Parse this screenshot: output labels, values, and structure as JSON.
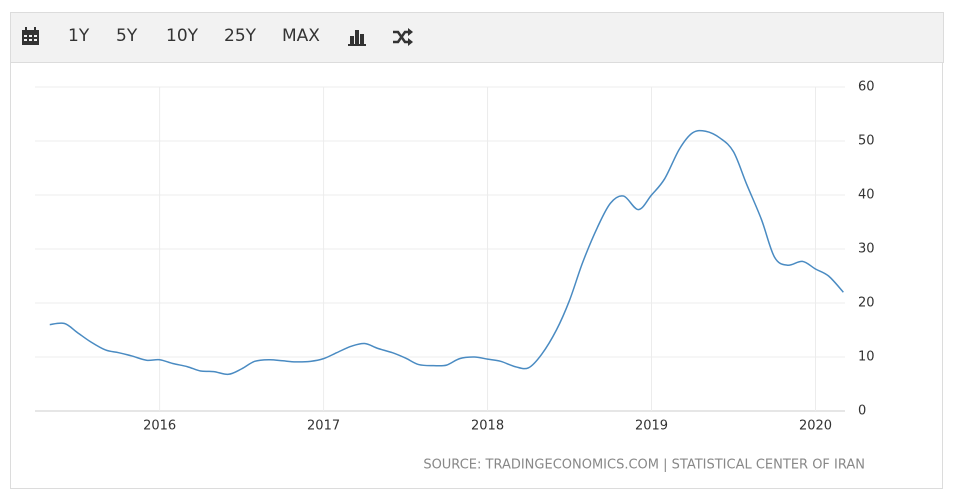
{
  "toolbar": {
    "buttons": [
      "1Y",
      "5Y",
      "10Y",
      "25Y",
      "MAX"
    ]
  },
  "chart_data": {
    "type": "line",
    "source": "SOURCE: TRADINGECONOMICS.COM | STATISTICAL CENTER OF IRAN",
    "x": [
      2015.33,
      2015.42,
      2015.5,
      2015.58,
      2015.67,
      2015.75,
      2015.83,
      2015.92,
      2016.0,
      2016.08,
      2016.17,
      2016.25,
      2016.33,
      2016.42,
      2016.5,
      2016.58,
      2016.67,
      2016.75,
      2016.83,
      2016.92,
      2017.0,
      2017.08,
      2017.17,
      2017.25,
      2017.33,
      2017.42,
      2017.5,
      2017.58,
      2017.67,
      2017.75,
      2017.83,
      2017.92,
      2018.0,
      2018.08,
      2018.17,
      2018.25,
      2018.33,
      2018.42,
      2018.5,
      2018.58,
      2018.67,
      2018.75,
      2018.83,
      2018.92,
      2019.0,
      2019.08,
      2019.17,
      2019.25,
      2019.33,
      2019.42,
      2019.5,
      2019.58,
      2019.67,
      2019.75,
      2019.83,
      2019.92,
      2020.0,
      2020.08,
      2020.17
    ],
    "series": [
      {
        "color": "#4a8bc2",
        "values": [
          16,
          16.2,
          14.5,
          12.8,
          11.3,
          10.8,
          10.2,
          9.4,
          9.5,
          8.8,
          8.2,
          7.4,
          7.3,
          6.8,
          7.8,
          9.2,
          9.5,
          9.3,
          9.1,
          9.2,
          9.7,
          10.8,
          12.0,
          12.5,
          11.6,
          10.8,
          9.8,
          8.6,
          8.4,
          8.5,
          9.7,
          10.0,
          9.6,
          9.2,
          8.2,
          8.0,
          10.5,
          15.0,
          20.5,
          27.5,
          34.0,
          38.5,
          39.8,
          37.3,
          40.0,
          43.0,
          48.5,
          51.5,
          51.8,
          50.5,
          48.0,
          42.0,
          35.5,
          28.5,
          27.0,
          27.7,
          26.3,
          25.0,
          22.0
        ]
      }
    ],
    "xlim": [
      2015.24,
      2020.18
    ],
    "xticks": [
      2016,
      2017,
      2018,
      2019,
      2020
    ],
    "ylim": [
      0,
      60
    ],
    "yticks": [
      0,
      10,
      20,
      30,
      40,
      50,
      60
    ],
    "grid": true
  }
}
